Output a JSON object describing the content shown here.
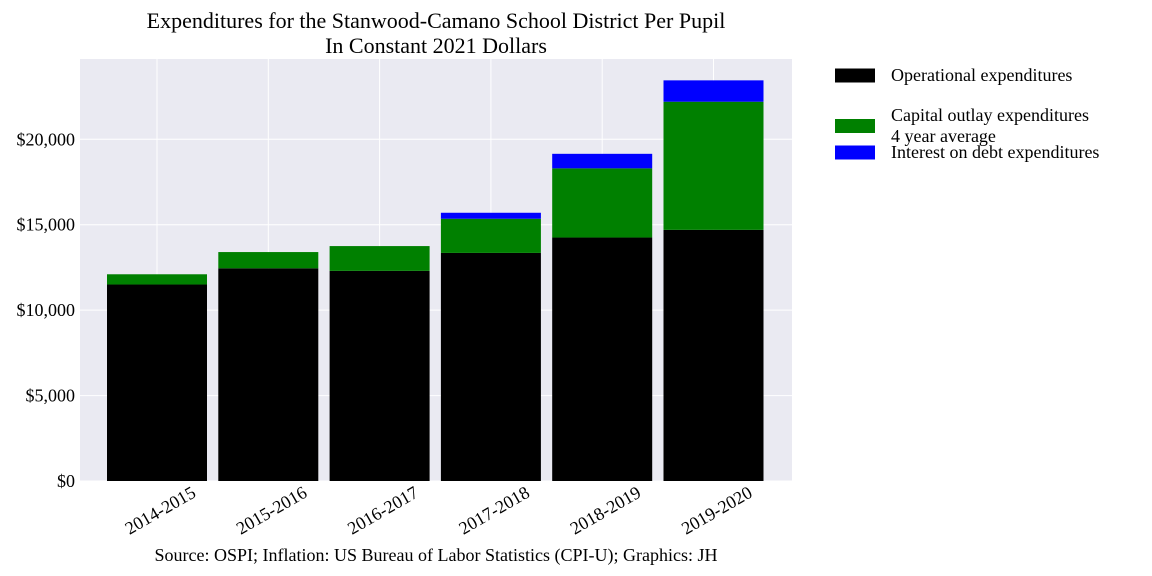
{
  "chart_data": {
    "type": "bar",
    "stacked": true,
    "title_line1": "Expenditures for the Stanwood-Camano School District Per Pupil",
    "title_line2": "In Constant 2021 Dollars",
    "categories": [
      "2014-2015",
      "2015-2016",
      "2016-2017",
      "2017-2018",
      "2018-2019",
      "2019-2020"
    ],
    "series": [
      {
        "name": "Operational expenditures",
        "color": "#000000",
        "values": [
          11500,
          12450,
          12300,
          13350,
          14250,
          14700
        ]
      },
      {
        "name": "Capital outlay expenditures\n4 year average",
        "color": "#008000",
        "values": [
          600,
          950,
          1450,
          2000,
          4050,
          7500
        ]
      },
      {
        "name": "Interest on debt expenditures",
        "color": "#0000ff",
        "values": [
          0,
          0,
          0,
          350,
          850,
          1250
        ]
      }
    ],
    "ylim": [
      0,
      24700
    ],
    "yticks": [
      0,
      5000,
      10000,
      15000,
      20000
    ],
    "ytick_labels": [
      "$0",
      "$5,000",
      "$10,000",
      "$15,000",
      "$20,000"
    ],
    "grid": true,
    "legend_position": "outside right, top",
    "xtick_rotation": "30 degrees",
    "source": "Source: OSPI; Inflation: US Bureau of Labor Statistics (CPI-U); Graphics: JH",
    "colors": {
      "plot_background": "#eaeaf2",
      "grid": "#ffffff"
    }
  }
}
